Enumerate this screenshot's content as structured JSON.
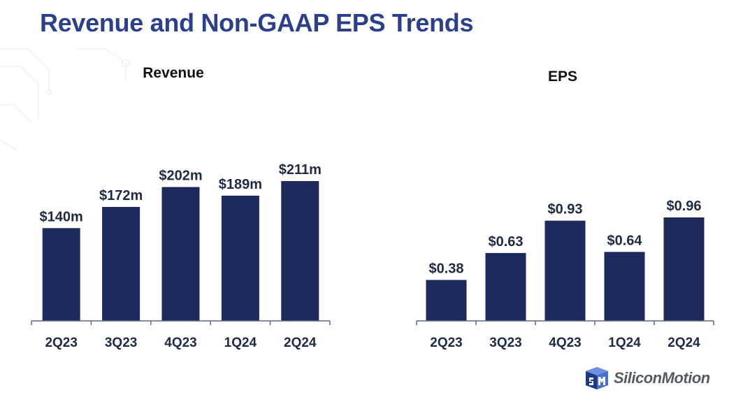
{
  "slide": {
    "title": "Revenue and Non-GAAP EPS Trends"
  },
  "colors": {
    "title": "#2b3f8c",
    "bar": "#1f2a5c",
    "axis": "#5b6b82"
  },
  "logo": {
    "text": "SiliconMotion"
  },
  "chart_data": [
    {
      "type": "bar",
      "title": "Revenue",
      "categories": [
        "2Q23",
        "3Q23",
        "4Q23",
        "1Q24",
        "2Q24"
      ],
      "values": [
        140,
        172,
        202,
        189,
        211
      ],
      "labels": [
        "$140m",
        "$172m",
        "$202m",
        "$189m",
        "$211m"
      ],
      "xlabel": "",
      "ylabel": "",
      "ylim": [
        0,
        211
      ],
      "grid": false,
      "legend": "none"
    },
    {
      "type": "bar",
      "title": "EPS",
      "categories": [
        "2Q23",
        "3Q23",
        "4Q23",
        "1Q24",
        "2Q24"
      ],
      "values": [
        0.38,
        0.63,
        0.93,
        0.64,
        0.96
      ],
      "labels": [
        "$0.38",
        "$0.63",
        "$0.93",
        "$0.64",
        "$0.96"
      ],
      "xlabel": "",
      "ylabel": "",
      "ylim": [
        0,
        0.96
      ],
      "grid": false,
      "legend": "none"
    }
  ]
}
